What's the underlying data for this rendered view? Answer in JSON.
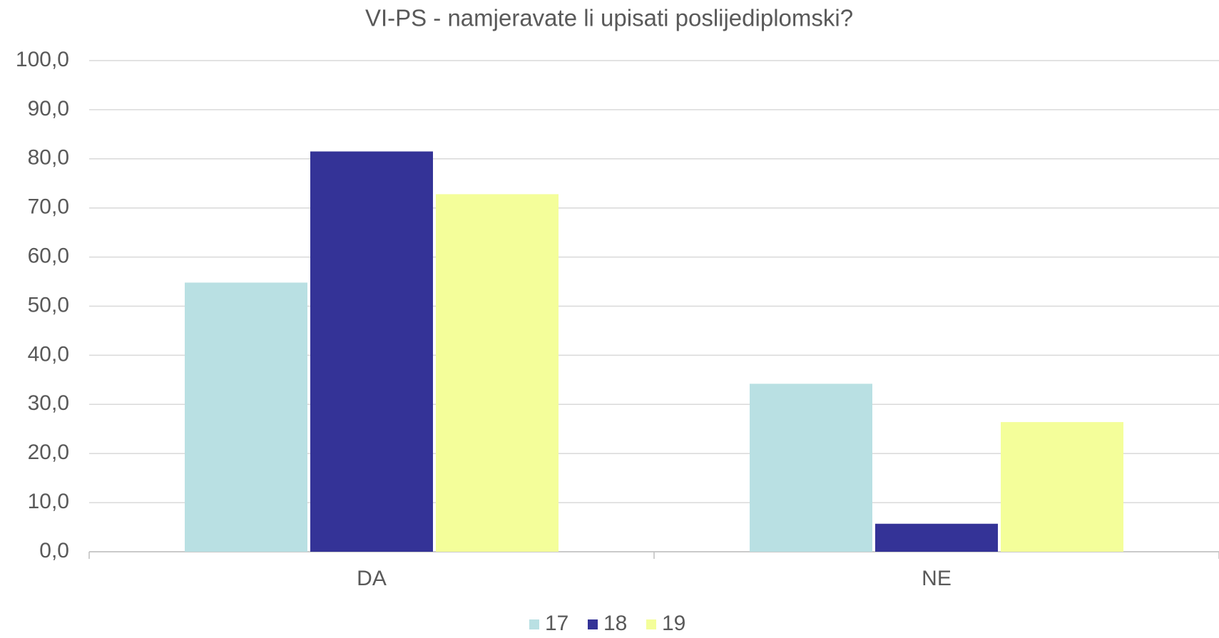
{
  "chart_data": {
    "type": "bar",
    "title": "VI-PS - namjeravate li upisati poslijediplomski?",
    "categories": [
      "DA",
      "NE"
    ],
    "series": [
      {
        "name": "17",
        "color": "#b9e0e3",
        "values": [
          54.8,
          34.2
        ]
      },
      {
        "name": "18",
        "color": "#343397",
        "values": [
          81.5,
          5.7
        ]
      },
      {
        "name": "19",
        "color": "#f4fe9a",
        "values": [
          72.8,
          26.4
        ]
      }
    ],
    "ylim": [
      0,
      100
    ],
    "yticks": [
      {
        "value": 0,
        "label": "0,0"
      },
      {
        "value": 10,
        "label": "10,0"
      },
      {
        "value": 20,
        "label": "20,0"
      },
      {
        "value": 30,
        "label": "30,0"
      },
      {
        "value": 40,
        "label": "40,0"
      },
      {
        "value": 50,
        "label": "50,0"
      },
      {
        "value": 60,
        "label": "60,0"
      },
      {
        "value": 70,
        "label": "70,0"
      },
      {
        "value": 80,
        "label": "80,0"
      },
      {
        "value": 90,
        "label": "90,0"
      },
      {
        "value": 100,
        "label": "100,0"
      }
    ],
    "grid": true,
    "legend": "bottom"
  }
}
